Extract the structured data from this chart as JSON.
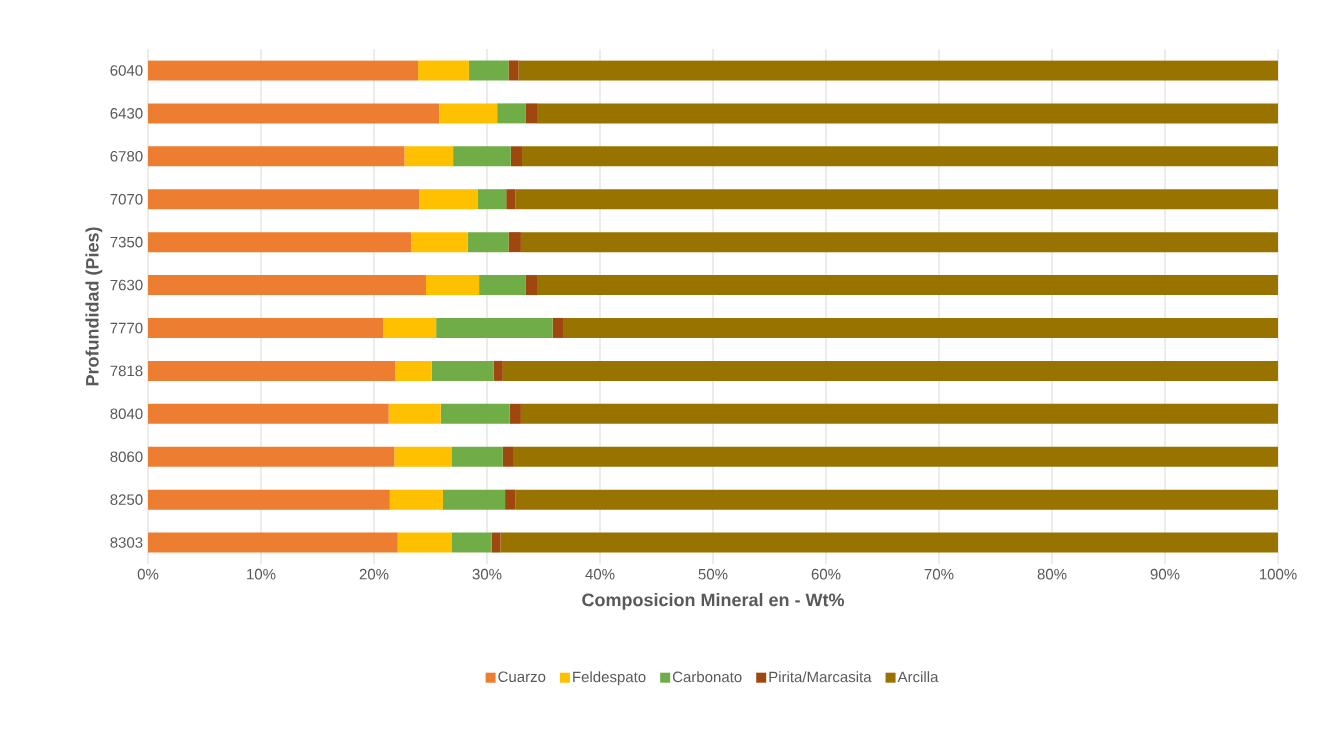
{
  "chart_data": {
    "type": "bar",
    "orientation": "horizontal",
    "stacked": true,
    "xlabel": "Composicion Mineral en - Wt%",
    "ylabel": "Profundidad (Pies)",
    "categories": [
      "6040",
      "6430",
      "6780",
      "7070",
      "7350",
      "7630",
      "7770",
      "7818",
      "8040",
      "8060",
      "8250",
      "8303"
    ],
    "series": [
      {
        "name": "Cuarzo",
        "color": "#ed7d31",
        "values": [
          23.9,
          25.8,
          22.7,
          24.0,
          23.3,
          24.6,
          20.8,
          21.9,
          21.3,
          21.8,
          21.4,
          22.1
        ]
      },
      {
        "name": "Feldespato",
        "color": "#ffc000",
        "values": [
          4.5,
          5.1,
          4.3,
          5.2,
          5.0,
          4.7,
          4.7,
          3.2,
          4.6,
          5.1,
          4.7,
          4.8
        ]
      },
      {
        "name": "Carbonato",
        "color": "#70ad47",
        "values": [
          3.5,
          2.5,
          5.1,
          2.5,
          3.6,
          4.1,
          10.3,
          5.5,
          6.1,
          4.5,
          5.5,
          3.5
        ]
      },
      {
        "name": "Pirita/Marcasita",
        "color": "#9e480e",
        "values": [
          0.9,
          1.1,
          1.0,
          0.8,
          1.1,
          1.1,
          1.0,
          0.8,
          1.0,
          0.9,
          0.9,
          0.8
        ]
      },
      {
        "name": "Arcilla",
        "color": "#997300",
        "values": [
          67.2,
          65.5,
          66.9,
          67.5,
          67.0,
          65.5,
          63.2,
          68.6,
          67.0,
          67.7,
          67.5,
          68.8
        ]
      }
    ],
    "xlim": [
      0,
      100
    ],
    "xticks": [
      {
        "value": 0,
        "label": "0%"
      },
      {
        "value": 10,
        "label": "10%"
      },
      {
        "value": 20,
        "label": "20%"
      },
      {
        "value": 30,
        "label": "30%"
      },
      {
        "value": 40,
        "label": "40%"
      },
      {
        "value": 50,
        "label": "50%"
      },
      {
        "value": 60,
        "label": "60%"
      },
      {
        "value": 70,
        "label": "70%"
      },
      {
        "value": 80,
        "label": "80%"
      },
      {
        "value": 90,
        "label": "90%"
      },
      {
        "value": 100,
        "label": "100%"
      }
    ],
    "grid": "x",
    "legend": "bottom"
  }
}
